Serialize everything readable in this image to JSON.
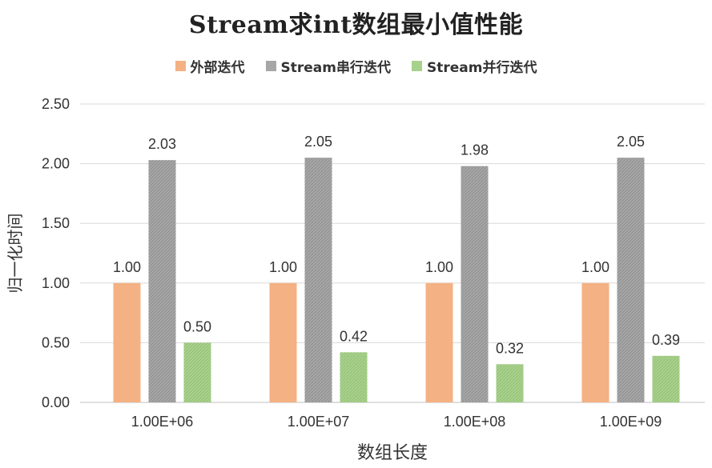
{
  "chart_data": {
    "type": "bar",
    "title": "Stream求int数组最小值性能",
    "xlabel": "数组长度",
    "ylabel": "归一化时间",
    "categories": [
      "1.00E+06",
      "1.00E+07",
      "1.00E+08",
      "1.00E+09"
    ],
    "ylim": [
      0,
      2.5
    ],
    "yticks": [
      "0.00",
      "0.50",
      "1.00",
      "1.50",
      "2.00",
      "2.50"
    ],
    "grid": true,
    "legend_position": "top",
    "series": [
      {
        "name": "外部迭代",
        "values": [
          1.0,
          1.0,
          1.0,
          1.0
        ],
        "labels": [
          "1.00",
          "1.00",
          "1.00",
          "1.00"
        ],
        "color": "#F4B183"
      },
      {
        "name": "Stream串行迭代",
        "values": [
          2.03,
          2.05,
          1.98,
          2.05
        ],
        "labels": [
          "2.03",
          "2.05",
          "1.98",
          "2.05"
        ],
        "color": "#A6A6A6"
      },
      {
        "name": "Stream并行迭代",
        "values": [
          0.5,
          0.42,
          0.32,
          0.39
        ],
        "labels": [
          "0.50",
          "0.42",
          "0.32",
          "0.39"
        ],
        "color": "#A9D18E"
      }
    ]
  }
}
